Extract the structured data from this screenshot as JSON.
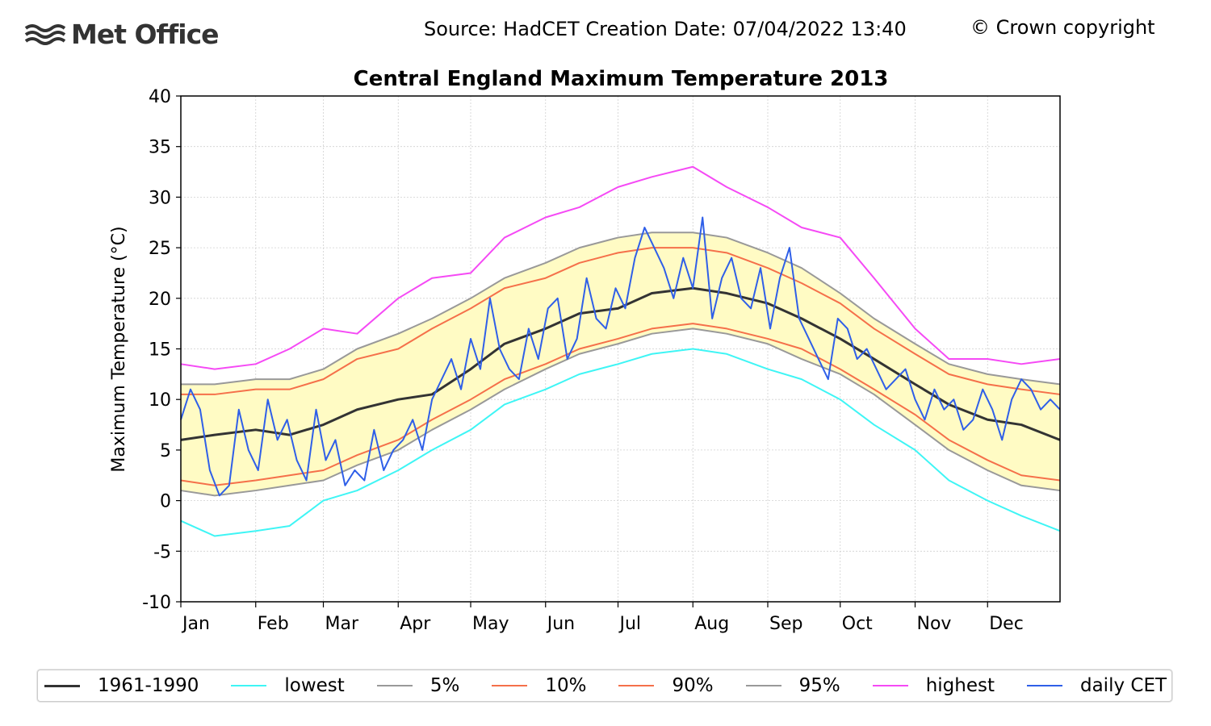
{
  "header": {
    "logo_text": "Met Office",
    "source": "Source: HadCET  Creation Date: 07/04/2022 13:40",
    "copyright": "© Crown copyright"
  },
  "chart_data": {
    "type": "line",
    "title": "Central England Maximum Temperature 2013",
    "ylabel": "Maximum Temperature (°C)",
    "xlabel": "",
    "ylim": [
      -10,
      40
    ],
    "yticks": [
      -10,
      -5,
      0,
      5,
      10,
      15,
      20,
      25,
      30,
      35,
      40
    ],
    "months": [
      "Jan",
      "Feb",
      "Mar",
      "Apr",
      "May",
      "Jun",
      "Jul",
      "Aug",
      "Sep",
      "Oct",
      "Nov",
      "Dec"
    ],
    "grid": true,
    "band_fill": "#fffbc4",
    "x_note_days": [
      1,
      32,
      60,
      91,
      121,
      152,
      182,
      213,
      244,
      274,
      305,
      335,
      365
    ],
    "series": [
      {
        "name": "1961-1990",
        "color": "#333333",
        "width": 3,
        "days": [
          1,
          15,
          32,
          46,
          60,
          74,
          91,
          105,
          121,
          135,
          152,
          166,
          182,
          196,
          213,
          227,
          244,
          258,
          274,
          288,
          305,
          319,
          335,
          349,
          365
        ],
        "values": [
          6,
          6.5,
          7,
          6.5,
          7.5,
          9,
          10,
          10.5,
          13,
          15.5,
          17,
          18.5,
          19,
          20.5,
          21,
          20.5,
          19.5,
          18,
          16,
          14,
          11.5,
          9.5,
          8,
          7.5,
          6
        ]
      },
      {
        "name": "lowest",
        "color": "#3ff5f5",
        "width": 2,
        "days": [
          1,
          15,
          32,
          46,
          60,
          74,
          91,
          105,
          121,
          135,
          152,
          166,
          182,
          196,
          213,
          227,
          244,
          258,
          274,
          288,
          305,
          319,
          335,
          349,
          365
        ],
        "values": [
          -2,
          -3.5,
          -3,
          -2.5,
          0,
          1,
          3,
          5,
          7,
          9.5,
          11,
          12.5,
          13.5,
          14.5,
          15,
          14.5,
          13,
          12,
          10,
          7.5,
          5,
          2,
          0,
          -1.5,
          -3
        ]
      },
      {
        "name": "5%",
        "color": "#999999",
        "width": 2,
        "days": [
          1,
          15,
          32,
          46,
          60,
          74,
          91,
          105,
          121,
          135,
          152,
          166,
          182,
          196,
          213,
          227,
          244,
          258,
          274,
          288,
          305,
          319,
          335,
          349,
          365
        ],
        "values": [
          1,
          0.5,
          1,
          1.5,
          2,
          3.5,
          5,
          7,
          9,
          11,
          13,
          14.5,
          15.5,
          16.5,
          17,
          16.5,
          15.5,
          14,
          12.5,
          10.5,
          7.5,
          5,
          3,
          1.5,
          1
        ]
      },
      {
        "name": "10%",
        "color": "#f5704a",
        "width": 2,
        "days": [
          1,
          15,
          32,
          46,
          60,
          74,
          91,
          105,
          121,
          135,
          152,
          166,
          182,
          196,
          213,
          227,
          244,
          258,
          274,
          288,
          305,
          319,
          335,
          349,
          365
        ],
        "values": [
          2,
          1.5,
          2,
          2.5,
          3,
          4.5,
          6,
          8,
          10,
          12,
          13.5,
          15,
          16,
          17,
          17.5,
          17,
          16,
          15,
          13,
          11,
          8.5,
          6,
          4,
          2.5,
          2
        ]
      },
      {
        "name": "90%",
        "color": "#f5704a",
        "width": 2,
        "days": [
          1,
          15,
          32,
          46,
          60,
          74,
          91,
          105,
          121,
          135,
          152,
          166,
          182,
          196,
          213,
          227,
          244,
          258,
          274,
          288,
          305,
          319,
          335,
          349,
          365
        ],
        "values": [
          10.5,
          10.5,
          11,
          11,
          12,
          14,
          15,
          17,
          19,
          21,
          22,
          23.5,
          24.5,
          25,
          25,
          24.5,
          23,
          21.5,
          19.5,
          17,
          14.5,
          12.5,
          11.5,
          11,
          10.5
        ]
      },
      {
        "name": "95%",
        "color": "#999999",
        "width": 2,
        "days": [
          1,
          15,
          32,
          46,
          60,
          74,
          91,
          105,
          121,
          135,
          152,
          166,
          182,
          196,
          213,
          227,
          244,
          258,
          274,
          288,
          305,
          319,
          335,
          349,
          365
        ],
        "values": [
          11.5,
          11.5,
          12,
          12,
          13,
          15,
          16.5,
          18,
          20,
          22,
          23.5,
          25,
          26,
          26.5,
          26.5,
          26,
          24.5,
          23,
          20.5,
          18,
          15.5,
          13.5,
          12.5,
          12,
          11.5
        ]
      },
      {
        "name": "highest",
        "color": "#f54af5",
        "width": 2,
        "days": [
          1,
          15,
          32,
          46,
          60,
          74,
          91,
          105,
          121,
          135,
          152,
          166,
          182,
          196,
          213,
          227,
          244,
          258,
          274,
          288,
          305,
          319,
          335,
          349,
          365
        ],
        "values": [
          13.5,
          13,
          13.5,
          15,
          17,
          16.5,
          20,
          22,
          22.5,
          26,
          28,
          29,
          31,
          32,
          33,
          31,
          29,
          27,
          26,
          22,
          17,
          14,
          14,
          13.5,
          14
        ]
      },
      {
        "name": "daily CET",
        "color": "#2f5fe8",
        "width": 2,
        "days": [
          1,
          5,
          9,
          13,
          17,
          21,
          25,
          29,
          33,
          37,
          41,
          45,
          49,
          53,
          57,
          61,
          65,
          69,
          73,
          77,
          81,
          85,
          89,
          93,
          97,
          101,
          105,
          109,
          113,
          117,
          121,
          125,
          129,
          133,
          137,
          141,
          145,
          149,
          153,
          157,
          161,
          165,
          169,
          173,
          177,
          181,
          185,
          189,
          193,
          197,
          201,
          205,
          209,
          213,
          217,
          221,
          225,
          229,
          233,
          237,
          241,
          245,
          249,
          253,
          257,
          261,
          265,
          269,
          273,
          277,
          281,
          285,
          289,
          293,
          297,
          301,
          305,
          309,
          313,
          317,
          321,
          325,
          329,
          333,
          337,
          341,
          345,
          349,
          353,
          357,
          361,
          365
        ],
        "values": [
          8,
          11,
          9,
          3,
          0.5,
          1.5,
          9,
          5,
          3,
          10,
          6,
          8,
          4,
          2,
          9,
          4,
          6,
          1.5,
          3,
          2,
          7,
          3,
          5,
          6,
          8,
          5,
          10,
          12,
          14,
          11,
          16,
          13,
          20,
          15,
          13,
          12,
          17,
          14,
          19,
          20,
          14,
          16,
          22,
          18,
          17,
          21,
          19,
          24,
          27,
          25,
          23,
          20,
          24,
          21,
          28,
          18,
          22,
          24,
          20,
          19,
          23,
          17,
          22,
          25,
          18,
          16,
          14,
          12,
          18,
          17,
          14,
          15,
          13,
          11,
          12,
          13,
          10,
          8,
          11,
          9,
          10,
          7,
          8,
          11,
          9,
          6,
          10,
          12,
          11,
          9,
          10,
          9
        ]
      }
    ],
    "legend": [
      "1961-1990",
      "lowest",
      "5%",
      "10%",
      "90%",
      "95%",
      "highest",
      "daily CET"
    ],
    "legend_placement": "bottom"
  }
}
